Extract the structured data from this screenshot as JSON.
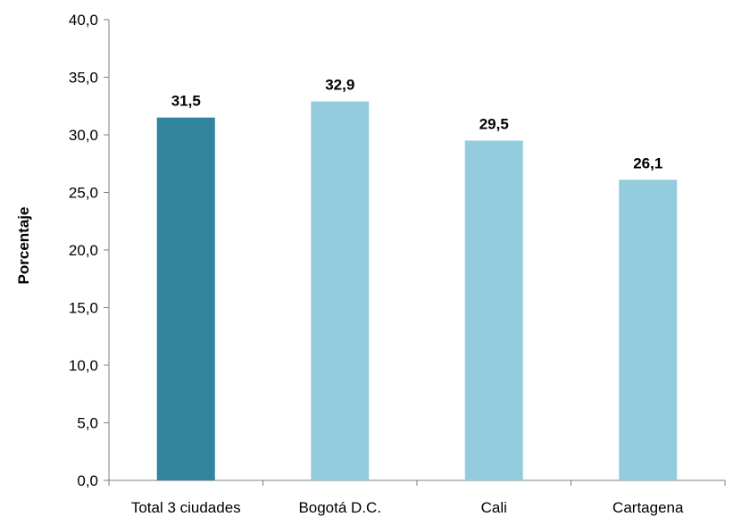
{
  "chart_data": {
    "type": "bar",
    "title": "",
    "xlabel": "",
    "ylabel": "Porcentaje",
    "ylim": [
      0,
      40
    ],
    "yticks": [
      "0,0",
      "5,0",
      "10,0",
      "15,0",
      "20,0",
      "25,0",
      "30,0",
      "35,0",
      "40,0"
    ],
    "ytick_values": [
      0,
      5,
      10,
      15,
      20,
      25,
      30,
      35,
      40
    ],
    "categories": [
      "Total 3 ciudades",
      "Bogotá D.C.",
      "Cali",
      "Cartagena"
    ],
    "values": [
      31.5,
      32.9,
      29.5,
      26.1
    ],
    "value_labels": [
      "31,5",
      "32,9",
      "29,5",
      "26,1"
    ],
    "bar_colors": [
      "#31859C",
      "#93CDDD",
      "#93CDDD",
      "#93CDDD"
    ],
    "grid": false,
    "legend": "none"
  }
}
